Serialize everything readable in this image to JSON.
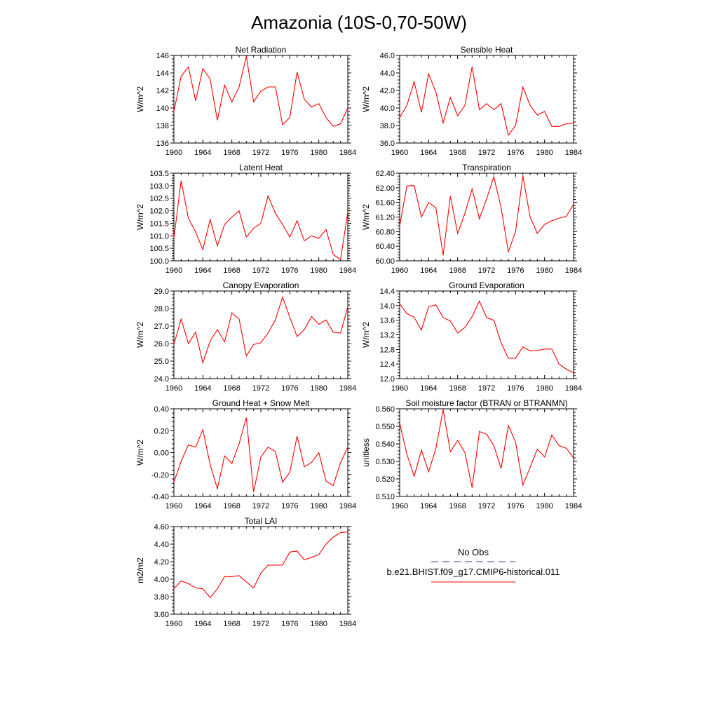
{
  "title": "Amazonia (10S-0,70-50W)",
  "legend": {
    "entries": [
      {
        "label": "No Obs",
        "color": "#3a3aa0",
        "dash": "dashed"
      },
      {
        "label": "b.e21.BHIST.f09_g17.CMIP6-historical.011",
        "color": "#ff0000",
        "dash": "solid"
      }
    ]
  },
  "chart_data": [
    {
      "type": "line",
      "title": "Net Radiation",
      "ylabel": "W/m^2",
      "xlim": [
        1960,
        1984
      ],
      "ylim": [
        136,
        146
      ],
      "xticks": [
        1960,
        1964,
        1968,
        1972,
        1976,
        1980,
        1984
      ],
      "yticks": [
        "136",
        "138",
        "140",
        "142",
        "144",
        "146"
      ],
      "color": "#ff0000",
      "x": [
        1960,
        1961,
        1962,
        1963,
        1964,
        1965,
        1966,
        1967,
        1968,
        1969,
        1970,
        1971,
        1972,
        1973,
        1974,
        1975,
        1976,
        1977,
        1978,
        1979,
        1980,
        1981,
        1982,
        1983,
        1984
      ],
      "y": [
        139.6,
        143.6,
        144.7,
        140.8,
        144.5,
        143.3,
        138.6,
        142.6,
        140.7,
        142.4,
        145.9,
        140.7,
        141.9,
        142.4,
        142.4,
        138.1,
        138.9,
        144.1,
        141.0,
        140.1,
        140.5,
        138.9,
        137.9,
        138.2,
        140.0
      ]
    },
    {
      "type": "line",
      "title": "Sensible Heat",
      "ylabel": "W/m^2",
      "xlim": [
        1960,
        1984
      ],
      "ylim": [
        36,
        46
      ],
      "xticks": [
        1960,
        1964,
        1968,
        1972,
        1976,
        1980,
        1984
      ],
      "yticks": [
        "36.0",
        "38.0",
        "40.0",
        "42.0",
        "44.0",
        "46.0"
      ],
      "color": "#ff0000",
      "x": [
        1960,
        1961,
        1962,
        1963,
        1964,
        1965,
        1966,
        1967,
        1968,
        1969,
        1970,
        1971,
        1972,
        1973,
        1974,
        1975,
        1976,
        1977,
        1978,
        1979,
        1980,
        1981,
        1982,
        1983,
        1984
      ],
      "y": [
        38.9,
        40.3,
        43.0,
        39.5,
        43.9,
        41.8,
        38.3,
        41.2,
        39.1,
        40.3,
        44.7,
        39.8,
        40.5,
        39.8,
        40.5,
        36.9,
        38.0,
        42.4,
        40.3,
        39.2,
        39.6,
        37.9,
        37.9,
        38.2,
        38.3
      ]
    },
    {
      "type": "line",
      "title": "Latent Heat",
      "ylabel": "W/m^2",
      "xlim": [
        1960,
        1984
      ],
      "ylim": [
        100.0,
        103.5
      ],
      "xticks": [
        1960,
        1964,
        1968,
        1972,
        1976,
        1980,
        1984
      ],
      "yticks": [
        "100.0",
        "100.5",
        "101.0",
        "101.5",
        "102.0",
        "102.5",
        "103.0",
        "103.5"
      ],
      "color": "#ff0000",
      "x": [
        1960,
        1961,
        1962,
        1963,
        1964,
        1965,
        1966,
        1967,
        1968,
        1969,
        1970,
        1971,
        1972,
        1973,
        1974,
        1975,
        1976,
        1977,
        1978,
        1979,
        1980,
        1981,
        1982,
        1983,
        1984
      ],
      "y": [
        100.9,
        103.2,
        101.7,
        101.15,
        100.45,
        101.65,
        100.6,
        101.45,
        101.75,
        102.0,
        100.95,
        101.3,
        101.5,
        102.6,
        101.9,
        101.45,
        100.95,
        101.6,
        100.8,
        101.0,
        100.9,
        101.25,
        100.25,
        100.05,
        101.95
      ]
    },
    {
      "type": "line",
      "title": "Transpiration",
      "ylabel": "W/m^2",
      "xlim": [
        1960,
        1984
      ],
      "ylim": [
        60.0,
        62.4
      ],
      "xticks": [
        1960,
        1964,
        1968,
        1972,
        1976,
        1980,
        1984
      ],
      "yticks": [
        "60.00",
        "60.40",
        "60.80",
        "61.20",
        "61.60",
        "62.00",
        "62.40"
      ],
      "color": "#ff0000",
      "x": [
        1960,
        1961,
        1962,
        1963,
        1964,
        1965,
        1966,
        1967,
        1968,
        1969,
        1970,
        1971,
        1972,
        1973,
        1974,
        1975,
        1976,
        1977,
        1978,
        1979,
        1980,
        1981,
        1982,
        1983,
        1984
      ],
      "y": [
        60.95,
        62.05,
        62.06,
        61.2,
        61.6,
        61.45,
        60.15,
        61.77,
        60.75,
        61.3,
        61.97,
        61.15,
        61.7,
        62.3,
        61.45,
        60.25,
        60.8,
        62.33,
        61.2,
        60.75,
        61.0,
        61.1,
        61.17,
        61.22,
        61.55
      ]
    },
    {
      "type": "line",
      "title": "Canopy Evaporation",
      "ylabel": "W/m^2",
      "xlim": [
        1960,
        1984
      ],
      "ylim": [
        24.0,
        29.0
      ],
      "xticks": [
        1960,
        1964,
        1968,
        1972,
        1976,
        1980,
        1984
      ],
      "yticks": [
        "24.0",
        "25.0",
        "26.0",
        "27.0",
        "28.0",
        "29.0"
      ],
      "color": "#ff0000",
      "x": [
        1960,
        1961,
        1962,
        1963,
        1964,
        1965,
        1966,
        1967,
        1968,
        1969,
        1970,
        1971,
        1972,
        1973,
        1974,
        1975,
        1976,
        1977,
        1978,
        1979,
        1980,
        1981,
        1982,
        1983,
        1984
      ],
      "y": [
        25.95,
        27.4,
        26.0,
        26.65,
        24.9,
        26.15,
        26.8,
        26.1,
        27.75,
        27.4,
        25.3,
        25.95,
        26.05,
        26.6,
        27.35,
        28.65,
        27.5,
        26.4,
        26.8,
        27.55,
        27.1,
        27.35,
        26.65,
        26.6,
        28.1
      ]
    },
    {
      "type": "line",
      "title": "Ground Evaporation",
      "ylabel": "W/m^2",
      "xlim": [
        1960,
        1984
      ],
      "ylim": [
        12.0,
        14.4
      ],
      "xticks": [
        1960,
        1964,
        1968,
        1972,
        1976,
        1980,
        1984
      ],
      "yticks": [
        "12.0",
        "12.4",
        "12.8",
        "13.2",
        "13.6",
        "14.0",
        "14.4"
      ],
      "color": "#ff0000",
      "x": [
        1960,
        1961,
        1962,
        1963,
        1964,
        1965,
        1966,
        1967,
        1968,
        1969,
        1970,
        1971,
        1972,
        1973,
        1974,
        1975,
        1976,
        1977,
        1978,
        1979,
        1980,
        1981,
        1982,
        1983,
        1984
      ],
      "y": [
        14.05,
        13.78,
        13.68,
        13.33,
        13.97,
        14.02,
        13.67,
        13.58,
        13.25,
        13.4,
        13.7,
        14.12,
        13.67,
        13.6,
        12.98,
        12.56,
        12.56,
        12.87,
        12.76,
        12.77,
        12.81,
        12.81,
        12.4,
        12.26,
        12.16
      ]
    },
    {
      "type": "line",
      "title": "Ground Heat + Snow Melt",
      "ylabel": "W/m^2",
      "xlim": [
        1960,
        1984
      ],
      "ylim": [
        -0.4,
        0.4
      ],
      "xticks": [
        1960,
        1964,
        1968,
        1972,
        1976,
        1980,
        1984
      ],
      "yticks": [
        "-0.40",
        "-0.20",
        "0.00",
        "0.20",
        "0.40"
      ],
      "color": "#ff0000",
      "x": [
        1960,
        1961,
        1962,
        1963,
        1964,
        1965,
        1966,
        1967,
        1968,
        1969,
        1970,
        1971,
        1972,
        1973,
        1974,
        1975,
        1976,
        1977,
        1978,
        1979,
        1980,
        1981,
        1982,
        1983,
        1984
      ],
      "y": [
        -0.27,
        -0.08,
        0.07,
        0.05,
        0.21,
        -0.11,
        -0.33,
        -0.03,
        -0.1,
        0.08,
        0.32,
        -0.36,
        -0.04,
        0.05,
        0.01,
        -0.27,
        -0.18,
        0.15,
        -0.13,
        -0.09,
        0.0,
        -0.26,
        -0.3,
        -0.09,
        0.05
      ]
    },
    {
      "type": "line",
      "title": "Soil moisture factor (BTRAN or BTRANMN)",
      "ylabel": "unitless",
      "xlim": [
        1960,
        1984
      ],
      "ylim": [
        0.51,
        0.56
      ],
      "xticks": [
        1960,
        1964,
        1968,
        1972,
        1976,
        1980,
        1984
      ],
      "yticks": [
        "0.510",
        "0.520",
        "0.530",
        "0.540",
        "0.550",
        "0.560"
      ],
      "color": "#ff0000",
      "x": [
        1960,
        1961,
        1962,
        1963,
        1964,
        1965,
        1966,
        1967,
        1968,
        1969,
        1970,
        1971,
        1972,
        1973,
        1974,
        1975,
        1976,
        1977,
        1978,
        1979,
        1980,
        1981,
        1982,
        1983,
        1984
      ],
      "y": [
        0.552,
        0.534,
        0.5215,
        0.5365,
        0.524,
        0.5375,
        0.5595,
        0.5355,
        0.542,
        0.535,
        0.515,
        0.547,
        0.5455,
        0.539,
        0.526,
        0.5505,
        0.541,
        0.5165,
        0.5265,
        0.537,
        0.5325,
        0.545,
        0.539,
        0.5375,
        0.532
      ]
    },
    {
      "type": "line",
      "title": "Total LAI",
      "ylabel": "m2/m2",
      "xlim": [
        1960,
        1984
      ],
      "ylim": [
        3.6,
        4.6
      ],
      "xticks": [
        1960,
        1964,
        1968,
        1972,
        1976,
        1980,
        1984
      ],
      "yticks": [
        "3.60",
        "3.80",
        "4.00",
        "4.20",
        "4.40",
        "4.60"
      ],
      "color": "#ff0000",
      "x": [
        1960,
        1961,
        1962,
        1963,
        1964,
        1965,
        1966,
        1967,
        1968,
        1969,
        1970,
        1971,
        1972,
        1973,
        1974,
        1975,
        1976,
        1977,
        1978,
        1979,
        1980,
        1981,
        1982,
        1983,
        1984
      ],
      "y": [
        3.89,
        3.98,
        3.95,
        3.9,
        3.89,
        3.79,
        3.89,
        4.03,
        4.03,
        4.04,
        3.97,
        3.9,
        4.07,
        4.16,
        4.16,
        4.16,
        4.31,
        4.32,
        4.22,
        4.25,
        4.28,
        4.4,
        4.48,
        4.53,
        4.54
      ]
    }
  ]
}
